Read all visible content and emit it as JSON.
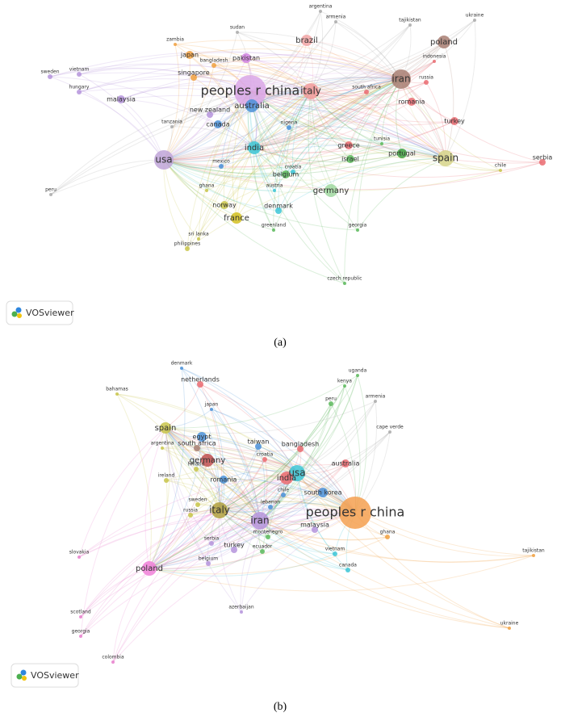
{
  "panels": [
    {
      "caption": "(a)",
      "logo": "VOSviewer",
      "nodes": [
        {
          "label": "peoples r china"
        },
        {
          "label": "iran"
        },
        {
          "label": "italy"
        },
        {
          "label": "usa"
        },
        {
          "label": "spain"
        },
        {
          "label": "india"
        },
        {
          "label": "australia"
        },
        {
          "label": "germany"
        },
        {
          "label": "poland"
        },
        {
          "label": "brazil"
        },
        {
          "label": "pakistan"
        },
        {
          "label": "malaysia"
        },
        {
          "label": "japan"
        },
        {
          "label": "canada"
        },
        {
          "label": "new zealand"
        },
        {
          "label": "france"
        },
        {
          "label": "norway"
        },
        {
          "label": "portugal"
        },
        {
          "label": "israel"
        },
        {
          "label": "belgium"
        },
        {
          "label": "denmark"
        },
        {
          "label": "greece"
        },
        {
          "label": "romania"
        },
        {
          "label": "turkey"
        },
        {
          "label": "russia"
        },
        {
          "label": "indonesia"
        },
        {
          "label": "ukraine"
        },
        {
          "label": "tajikistan"
        },
        {
          "label": "armenia"
        },
        {
          "label": "argentina"
        },
        {
          "label": "sudan"
        },
        {
          "label": "zambia"
        },
        {
          "label": "bangladesh"
        },
        {
          "label": "singapore"
        },
        {
          "label": "vietnam"
        },
        {
          "label": "sweden"
        },
        {
          "label": "hungary"
        },
        {
          "label": "tanzania"
        },
        {
          "label": "nigeria"
        },
        {
          "label": "south africa"
        },
        {
          "label": "tunisia"
        },
        {
          "label": "croatia"
        },
        {
          "label": "mexico"
        },
        {
          "label": "austria"
        },
        {
          "label": "ghana"
        },
        {
          "label": "greenland"
        },
        {
          "label": "georgia"
        },
        {
          "label": "sri lanka"
        },
        {
          "label": "philippines"
        },
        {
          "label": "czech republic"
        },
        {
          "label": "chile"
        },
        {
          "label": "serbia"
        },
        {
          "label": "peru"
        }
      ]
    },
    {
      "caption": "(b)",
      "logo": "VOSviewer",
      "nodes": [
        {
          "label": "peoples r china"
        },
        {
          "label": "iran"
        },
        {
          "label": "usa"
        },
        {
          "label": "italy"
        },
        {
          "label": "poland"
        },
        {
          "label": "spain"
        },
        {
          "label": "germany"
        },
        {
          "label": "india"
        },
        {
          "label": "australia"
        },
        {
          "label": "egypt"
        },
        {
          "label": "south korea"
        },
        {
          "label": "romania"
        },
        {
          "label": "malaysia"
        },
        {
          "label": "bangladesh"
        },
        {
          "label": "turkey"
        },
        {
          "label": "serbia"
        },
        {
          "label": "vietnam"
        },
        {
          "label": "canada"
        },
        {
          "label": "ghana"
        },
        {
          "label": "netherlands"
        },
        {
          "label": "denmark"
        },
        {
          "label": "japan"
        },
        {
          "label": "taiwan"
        },
        {
          "label": "south africa"
        },
        {
          "label": "croatia"
        },
        {
          "label": "finland"
        },
        {
          "label": "ireland"
        },
        {
          "label": "sweden"
        },
        {
          "label": "russia"
        },
        {
          "label": "lebanon"
        },
        {
          "label": "chile"
        },
        {
          "label": "montenegro"
        },
        {
          "label": "ecuador"
        },
        {
          "label": "belgium"
        },
        {
          "label": "peru"
        },
        {
          "label": "uganda"
        },
        {
          "label": "kenya"
        },
        {
          "label": "armenia"
        },
        {
          "label": "cape verde"
        },
        {
          "label": "argentina"
        },
        {
          "label": "bahamas"
        },
        {
          "label": "slovakia"
        },
        {
          "label": "scotland"
        },
        {
          "label": "georgia"
        },
        {
          "label": "colombia"
        },
        {
          "label": "azerbaijan"
        },
        {
          "label": "tajikistan"
        },
        {
          "label": "ukraine"
        }
      ]
    }
  ]
}
